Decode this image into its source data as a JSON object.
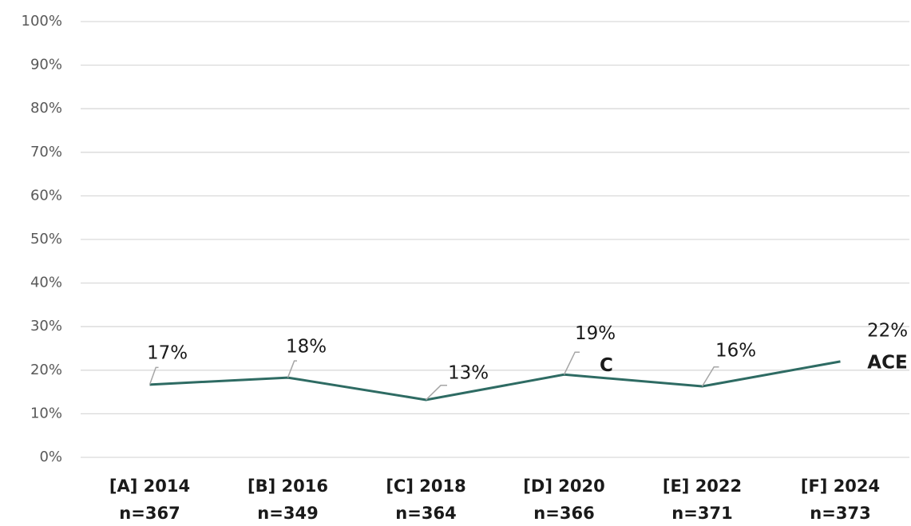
{
  "chart_data": {
    "type": "line",
    "categories": [
      [
        "[A] 2014",
        "n=367"
      ],
      [
        "[B] 2016",
        "n=349"
      ],
      [
        "[C] 2018",
        "n=364"
      ],
      [
        "[D] 2020",
        "n=366"
      ],
      [
        "[E] 2022",
        "n=371"
      ],
      [
        "[F] 2024",
        "n=373"
      ]
    ],
    "values": [
      16.7,
      18.3,
      13.2,
      19.0,
      16.3,
      22.0
    ],
    "value_labels": [
      "17%",
      "18%",
      "13%",
      "19%",
      "16%",
      "22%"
    ],
    "significance": [
      null,
      null,
      null,
      "C",
      null,
      "ACE"
    ],
    "color": "#2e6b63",
    "ylim": [
      0,
      100
    ],
    "yticks": [
      {
        "value": 0,
        "label": "0%"
      },
      {
        "value": 10,
        "label": "10%"
      },
      {
        "value": 20,
        "label": "20%"
      },
      {
        "value": 30,
        "label": "30%"
      },
      {
        "value": 40,
        "label": "40%"
      },
      {
        "value": 50,
        "label": "50%"
      },
      {
        "value": 60,
        "label": "60%"
      },
      {
        "value": 70,
        "label": "70%"
      },
      {
        "value": 80,
        "label": "80%"
      },
      {
        "value": 90,
        "label": "90%"
      },
      {
        "value": 100,
        "label": "100%"
      }
    ],
    "grid": true
  }
}
